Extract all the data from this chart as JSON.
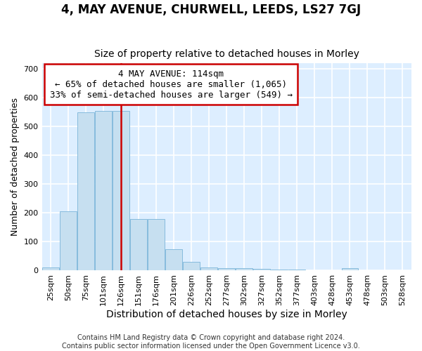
{
  "title": "4, MAY AVENUE, CHURWELL, LEEDS, LS27 7GJ",
  "subtitle": "Size of property relative to detached houses in Morley",
  "xlabel": "Distribution of detached houses by size in Morley",
  "ylabel": "Number of detached properties",
  "bar_labels": [
    "25sqm",
    "50sqm",
    "75sqm",
    "101sqm",
    "126sqm",
    "151sqm",
    "176sqm",
    "201sqm",
    "226sqm",
    "252sqm",
    "277sqm",
    "302sqm",
    "327sqm",
    "352sqm",
    "377sqm",
    "403sqm",
    "428sqm",
    "453sqm",
    "478sqm",
    "503sqm",
    "528sqm"
  ],
  "bar_values": [
    10,
    205,
    550,
    555,
    555,
    180,
    180,
    75,
    30,
    12,
    8,
    8,
    5,
    3,
    3,
    2,
    2,
    8,
    2,
    2,
    2
  ],
  "bar_color": "#c6dff0",
  "bar_edgecolor": "#7ab4d8",
  "fig_background_color": "#ffffff",
  "plot_background_color": "#ddeeff",
  "grid_color": "#ffffff",
  "vline_x": 4.0,
  "vline_color": "#cc0000",
  "annotation_text": "4 MAY AVENUE: 114sqm\n← 65% of detached houses are smaller (1,065)\n33% of semi-detached houses are larger (549) →",
  "annotation_box_facecolor": "#ffffff",
  "annotation_box_edgecolor": "#cc0000",
  "ylim": [
    0,
    720
  ],
  "yticks": [
    0,
    100,
    200,
    300,
    400,
    500,
    600,
    700
  ],
  "title_fontsize": 12,
  "subtitle_fontsize": 10,
  "xlabel_fontsize": 10,
  "ylabel_fontsize": 9,
  "tick_fontsize": 8,
  "annot_fontsize": 9,
  "footer_fontsize": 7
}
